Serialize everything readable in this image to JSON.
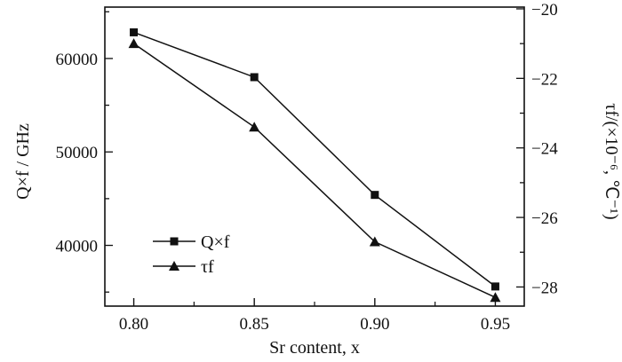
{
  "chart_data": {
    "type": "line",
    "x": [
      0.8,
      0.85,
      0.9,
      0.95
    ],
    "xlabel": "Sr content, x",
    "x_ticks": [
      "0.80",
      "0.85",
      "0.90",
      "0.95"
    ],
    "xlim": [
      0.788,
      0.962
    ],
    "y_left": {
      "label": "Q×f / GHz",
      "lim": [
        33500,
        65500
      ],
      "ticks": [
        "40000",
        "50000",
        "60000"
      ],
      "tick_values": [
        40000,
        50000,
        60000
      ]
    },
    "y_right": {
      "label": "τf/(×10⁻⁶, ℃⁻¹)",
      "lim": [
        -28.55,
        -19.95
      ],
      "ticks": [
        "−20",
        "−22",
        "−24",
        "−26",
        "−28"
      ],
      "tick_values": [
        -20,
        -22,
        -24,
        -26,
        -28
      ]
    },
    "series": [
      {
        "name": "Q×f",
        "axis": "left",
        "marker": "square",
        "values": [
          62800,
          58000,
          45400,
          35600
        ]
      },
      {
        "name": "τf",
        "axis": "right",
        "marker": "triangle",
        "values": [
          -21.0,
          -23.4,
          -26.7,
          -28.3
        ]
      }
    ],
    "legend_position": "bottom-left",
    "grid": false,
    "line_color": "#111111"
  }
}
